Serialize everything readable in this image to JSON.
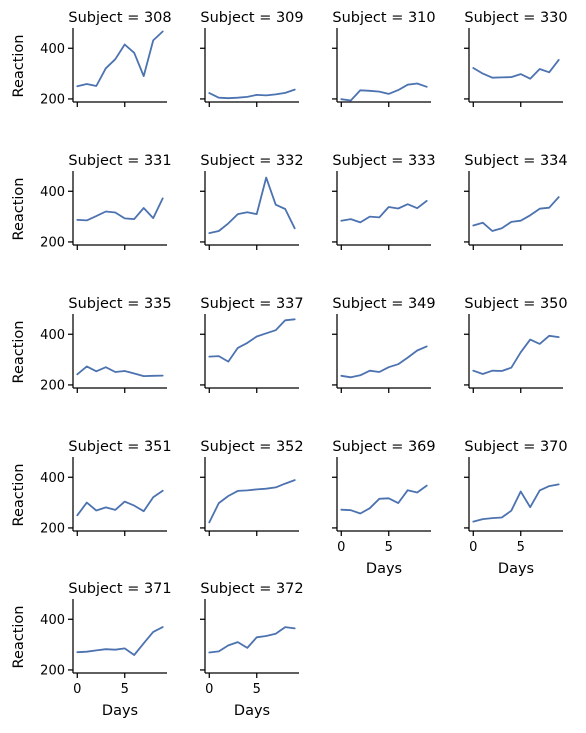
{
  "chart_data": {
    "type": "line",
    "facet_label": "Subject",
    "xlabel": "Days",
    "ylabel": "Reaction",
    "xlim": [
      -0.45,
      9.45
    ],
    "ylim": [
      180,
      480
    ],
    "xticks": [
      0,
      5
    ],
    "yticks": [
      200,
      400
    ],
    "line_color": "#4c72b0",
    "x": [
      0,
      1,
      2,
      3,
      4,
      5,
      6,
      7,
      8,
      9
    ],
    "panels": [
      {
        "title": "Subject = 308",
        "values": [
          250,
          259,
          251,
          321,
          357,
          415,
          382,
          290,
          431,
          466
        ]
      },
      {
        "title": "Subject = 309",
        "values": [
          223,
          205,
          203,
          205,
          208,
          216,
          214,
          218,
          224,
          237
        ]
      },
      {
        "title": "Subject = 310",
        "values": [
          199,
          194,
          234,
          232,
          229,
          220,
          235,
          256,
          261,
          248
        ]
      },
      {
        "title": "Subject = 330",
        "values": [
          322,
          300,
          284,
          285,
          286,
          298,
          280,
          318,
          305,
          354
        ]
      },
      {
        "title": "Subject = 331",
        "values": [
          287,
          285,
          302,
          320,
          316,
          293,
          290,
          334,
          294,
          372
        ]
      },
      {
        "title": "Subject = 332",
        "values": [
          235,
          243,
          273,
          310,
          317,
          310,
          454,
          347,
          330,
          254
        ]
      },
      {
        "title": "Subject = 333",
        "values": [
          284,
          290,
          277,
          300,
          297,
          338,
          332,
          349,
          333,
          362
        ]
      },
      {
        "title": "Subject = 334",
        "values": [
          265,
          276,
          243,
          254,
          279,
          284,
          305,
          331,
          335,
          377
        ]
      },
      {
        "title": "Subject = 335",
        "values": [
          242,
          273,
          254,
          270,
          251,
          255,
          245,
          235,
          236,
          237
        ]
      },
      {
        "title": "Subject = 337",
        "values": [
          312,
          314,
          292,
          346,
          366,
          391,
          404,
          416,
          455,
          459
        ]
      },
      {
        "title": "Subject = 349",
        "values": [
          236,
          230,
          238,
          256,
          251,
          270,
          282,
          308,
          336,
          352
        ]
      },
      {
        "title": "Subject = 350",
        "values": [
          256,
          243,
          256,
          255,
          268,
          329,
          379,
          362,
          394,
          389
        ]
      },
      {
        "title": "Subject = 351",
        "values": [
          250,
          300,
          269,
          281,
          271,
          304,
          288,
          266,
          321,
          347
        ]
      },
      {
        "title": "Subject = 352",
        "values": [
          222,
          298,
          326,
          346,
          348,
          352,
          355,
          360,
          375,
          389
        ]
      },
      {
        "title": "Subject = 369",
        "values": [
          272,
          270,
          257,
          278,
          315,
          317,
          298,
          349,
          340,
          367
        ]
      },
      {
        "title": "Subject = 370",
        "values": [
          225,
          235,
          239,
          241,
          268,
          344,
          282,
          348,
          365,
          372
        ]
      },
      {
        "title": "Subject = 371",
        "values": [
          270,
          272,
          277,
          282,
          280,
          285,
          259,
          305,
          350,
          369
        ]
      },
      {
        "title": "Subject = 372",
        "values": [
          269,
          273,
          297,
          310,
          287,
          329,
          334,
          343,
          369,
          364
        ]
      }
    ]
  }
}
